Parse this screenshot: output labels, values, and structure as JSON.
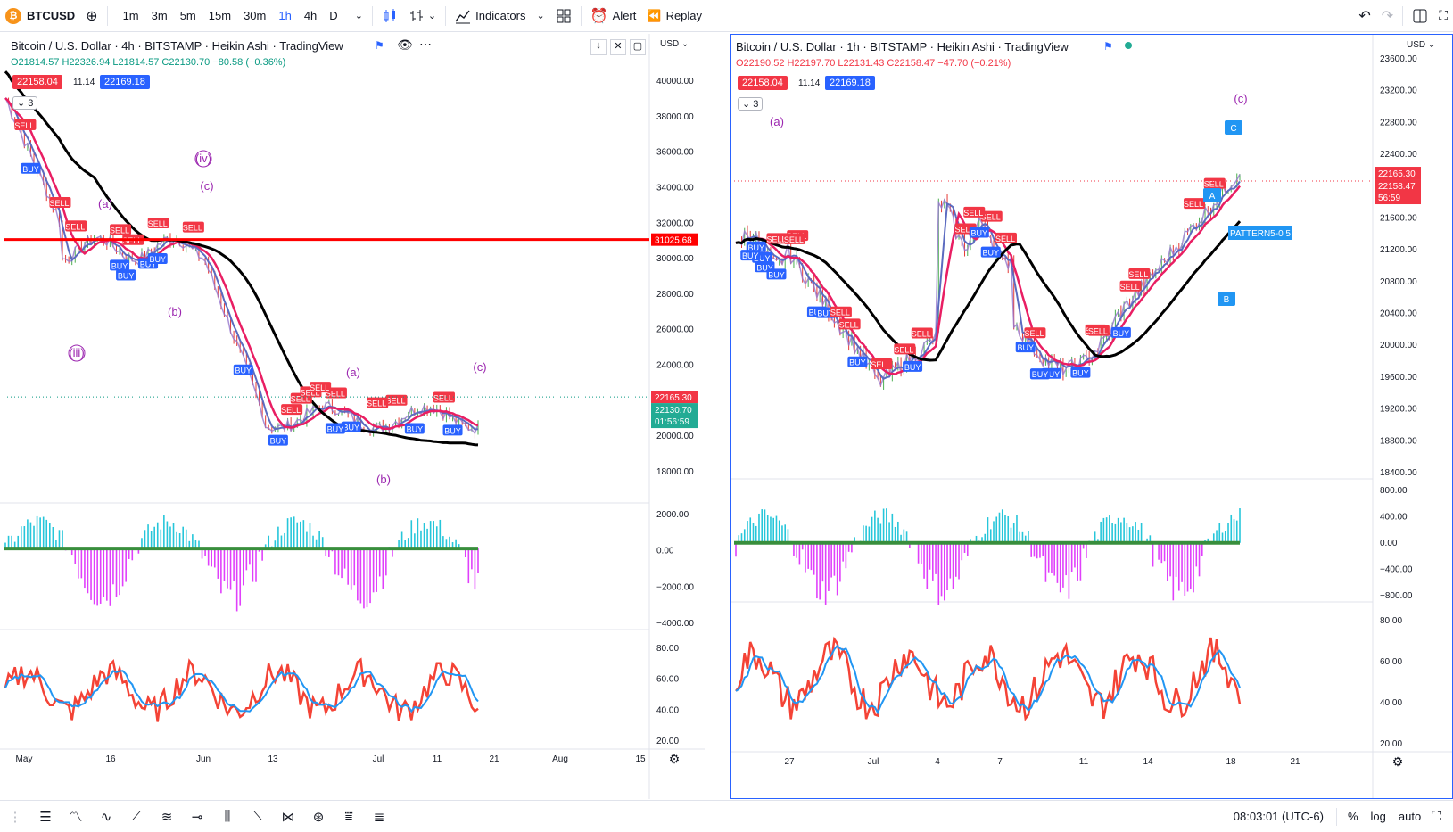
{
  "toolbar": {
    "symbol": "BTCUSD",
    "symbol_badge": "₿",
    "timeframes": [
      "1m",
      "3m",
      "5m",
      "15m",
      "30m",
      "1h",
      "4h",
      "D"
    ],
    "active_timeframe": "1h",
    "indicators_label": "Indicators",
    "alert_label": "Alert",
    "replay_label": "Replay"
  },
  "left_chart": {
    "title": "Bitcoin / U.S. Dollar · 4h · BITSTAMP · Heikin Ashi · TradingView",
    "ohlc": "O21814.57 H22326.94 L21814.57 C22130.70 −80.58 (−0.36%)",
    "bid": "22158.04",
    "spread": "11.14",
    "ask": "22169.18",
    "counter": "3",
    "currency": "USD",
    "price_axis": [
      "40000.00",
      "38000.00",
      "36000.00",
      "34000.00",
      "32000.00",
      "30000.00",
      "28000.00",
      "26000.00",
      "24000.00",
      "20000.00",
      "18000.00"
    ],
    "osc1_axis": [
      "2000.00",
      "0.00",
      "−2000.00",
      "−4000.00"
    ],
    "osc2_axis": [
      "80.00",
      "60.00",
      "40.00",
      "20.00"
    ],
    "line_label": "31025.68",
    "last_price": "22165.30",
    "close_price": "22130.70",
    "countdown": "01:56:59",
    "time_axis": [
      "May",
      "16",
      "Jun",
      "13",
      "Jul",
      "11",
      "21",
      "Aug",
      "15"
    ],
    "wave_labels": [
      "(a)",
      "(iv)",
      "(c)",
      "(b)",
      "(iii)",
      "(a)",
      "(b)",
      "(c)"
    ],
    "signal_buy": "BUY",
    "signal_sell": "SELL"
  },
  "right_chart": {
    "title": "Bitcoin / U.S. Dollar · 1h · BITSTAMP · Heikin Ashi · TradingView",
    "ohlc": "O22190.52 H22197.70 L22131.43 C22158.47 −47.70 (−0.21%)",
    "bid": "22158.04",
    "spread": "11.14",
    "ask": "22169.18",
    "counter": "3",
    "currency": "USD",
    "price_axis": [
      "23600.00",
      "23200.00",
      "22800.00",
      "22400.00",
      "21600.00",
      "21200.00",
      "20800.00",
      "20400.00",
      "20000.00",
      "19600.00",
      "19200.00",
      "18800.00",
      "18400.00"
    ],
    "osc1_axis": [
      "800.00",
      "400.00",
      "0.00",
      "−400.00",
      "−800.00"
    ],
    "osc2_axis": [
      "80.00",
      "60.00",
      "40.00",
      "20.00"
    ],
    "last_price": "22165.30",
    "close_price": "22158.47",
    "countdown": "56:59",
    "time_axis": [
      "27",
      "Jul",
      "4",
      "7",
      "11",
      "14",
      "18",
      "21"
    ],
    "wave_labels": [
      "(a)",
      "(c)"
    ],
    "point_labels": [
      "A",
      "B",
      "C"
    ],
    "pattern_label": "PATTERN5-0 5",
    "signal_buy": "BUY",
    "signal_sell": "SELL"
  },
  "bottom": {
    "time": "08:03:01 (UTC-6)",
    "percent": "%",
    "log": "log",
    "auto": "auto"
  },
  "colors": {
    "accent": "#2962ff",
    "buy": "#2962ff",
    "sell": "#f23645",
    "bid_bg": "#f23645",
    "ask_bg": "#2962ff",
    "ma_black": "#000000",
    "ma_red": "#e91e63",
    "hline": "#ff0000",
    "osc_pos": "#26c6da",
    "osc_neg": "#e040fb",
    "rsi_red": "#f44336",
    "rsi_blue": "#2196f3"
  }
}
